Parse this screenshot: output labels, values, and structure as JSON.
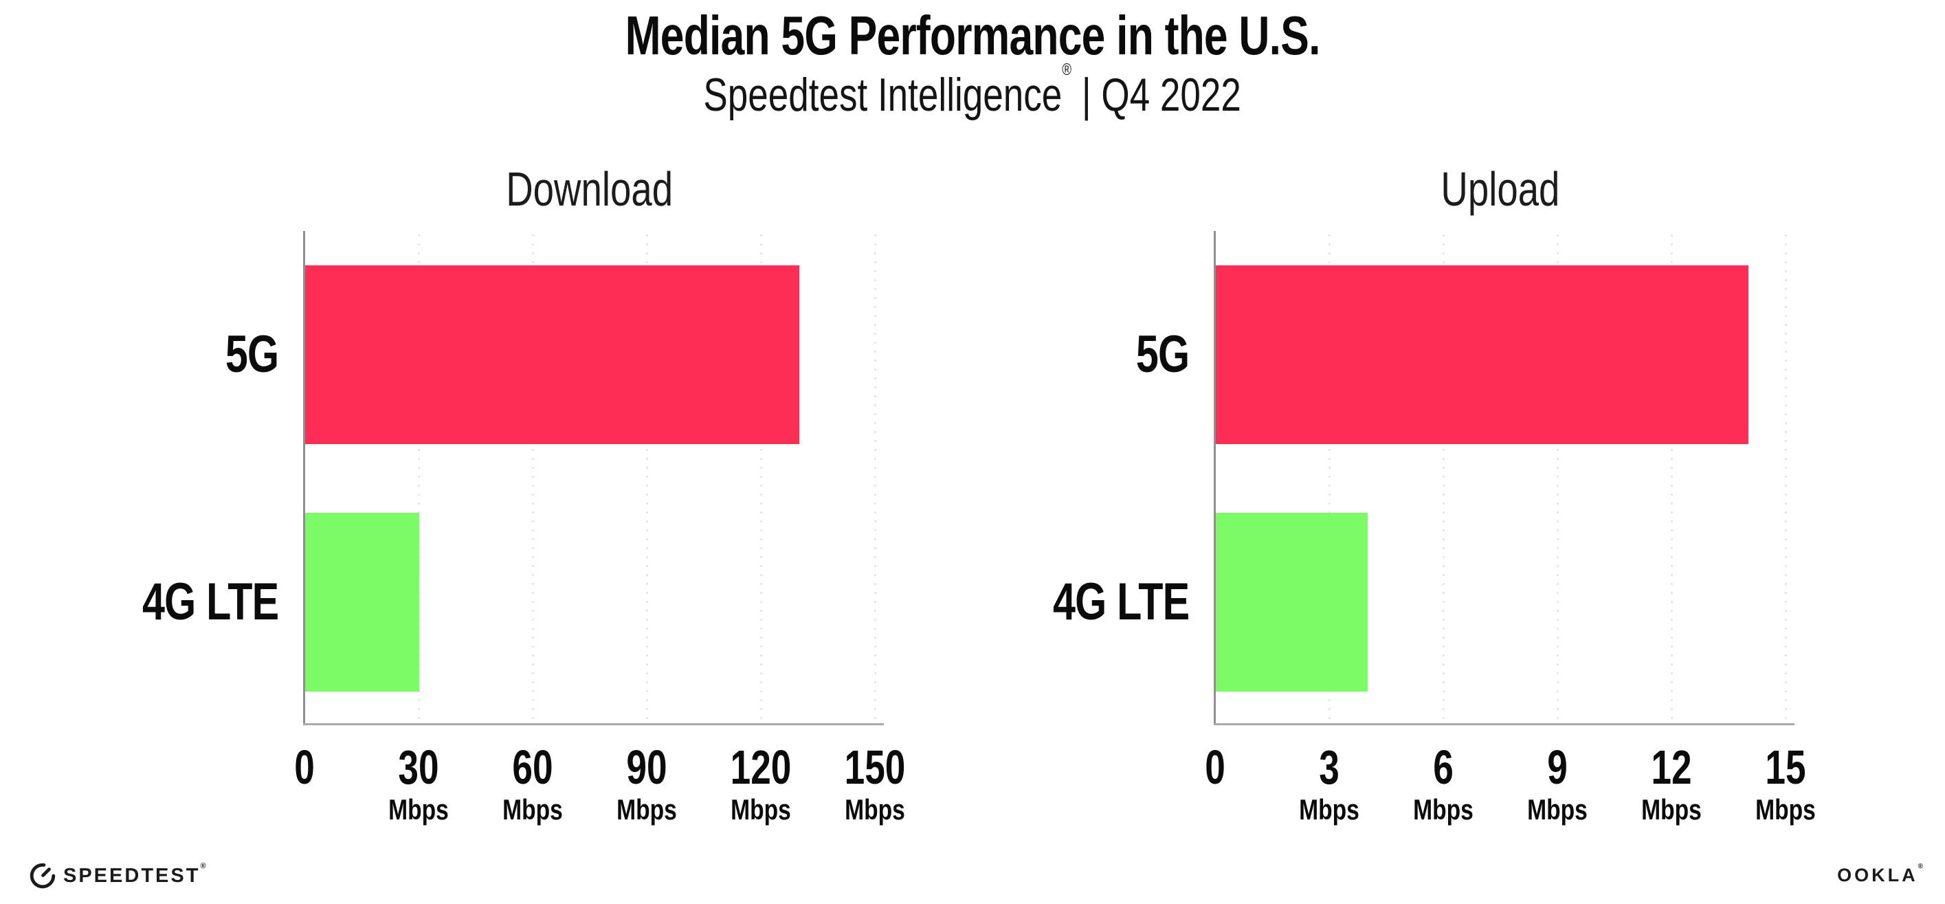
{
  "header": {
    "title": "Median 5G Performance in the U.S.",
    "subtitle_brand": "Speedtest Intelligence",
    "subtitle_reg": "®",
    "subtitle_rest": " | Q4 2022"
  },
  "chart_data": [
    {
      "type": "bar",
      "orientation": "horizontal",
      "title": "Download",
      "categories": [
        "5G",
        "4G LTE"
      ],
      "values": [
        130,
        30
      ],
      "unit": "Mbps",
      "xlabel": "Mbps",
      "xlim": [
        0,
        150
      ],
      "xticks": [
        0,
        30,
        60,
        90,
        120,
        150
      ],
      "bar_colors": [
        "#FE2D55",
        "#7DFB66"
      ],
      "grid": "vertical-dotted",
      "legend": "none"
    },
    {
      "type": "bar",
      "orientation": "horizontal",
      "title": "Upload",
      "categories": [
        "5G",
        "4G LTE"
      ],
      "values": [
        14,
        4
      ],
      "unit": "Mbps",
      "xlabel": "Mbps",
      "xlim": [
        0,
        15
      ],
      "xticks": [
        0,
        3,
        6,
        9,
        12,
        15
      ],
      "bar_colors": [
        "#FE2D55",
        "#7DFB66"
      ],
      "grid": "vertical-dotted",
      "legend": "none"
    }
  ],
  "footer": {
    "speedtest_icon": "speedtest-gauge-icon",
    "speedtest_text": "SPEEDTEST",
    "speedtest_reg": "®",
    "ookla_text": "OOKLA",
    "ookla_reg": "®"
  },
  "colors": {
    "bar_5g": "#FE2D55",
    "bar_4g_lte": "#7DFB66",
    "gridline": "#E0E0EA",
    "axis": "#9A9A9A",
    "text": "#0B0B0B",
    "background": "#FFFFFF"
  }
}
